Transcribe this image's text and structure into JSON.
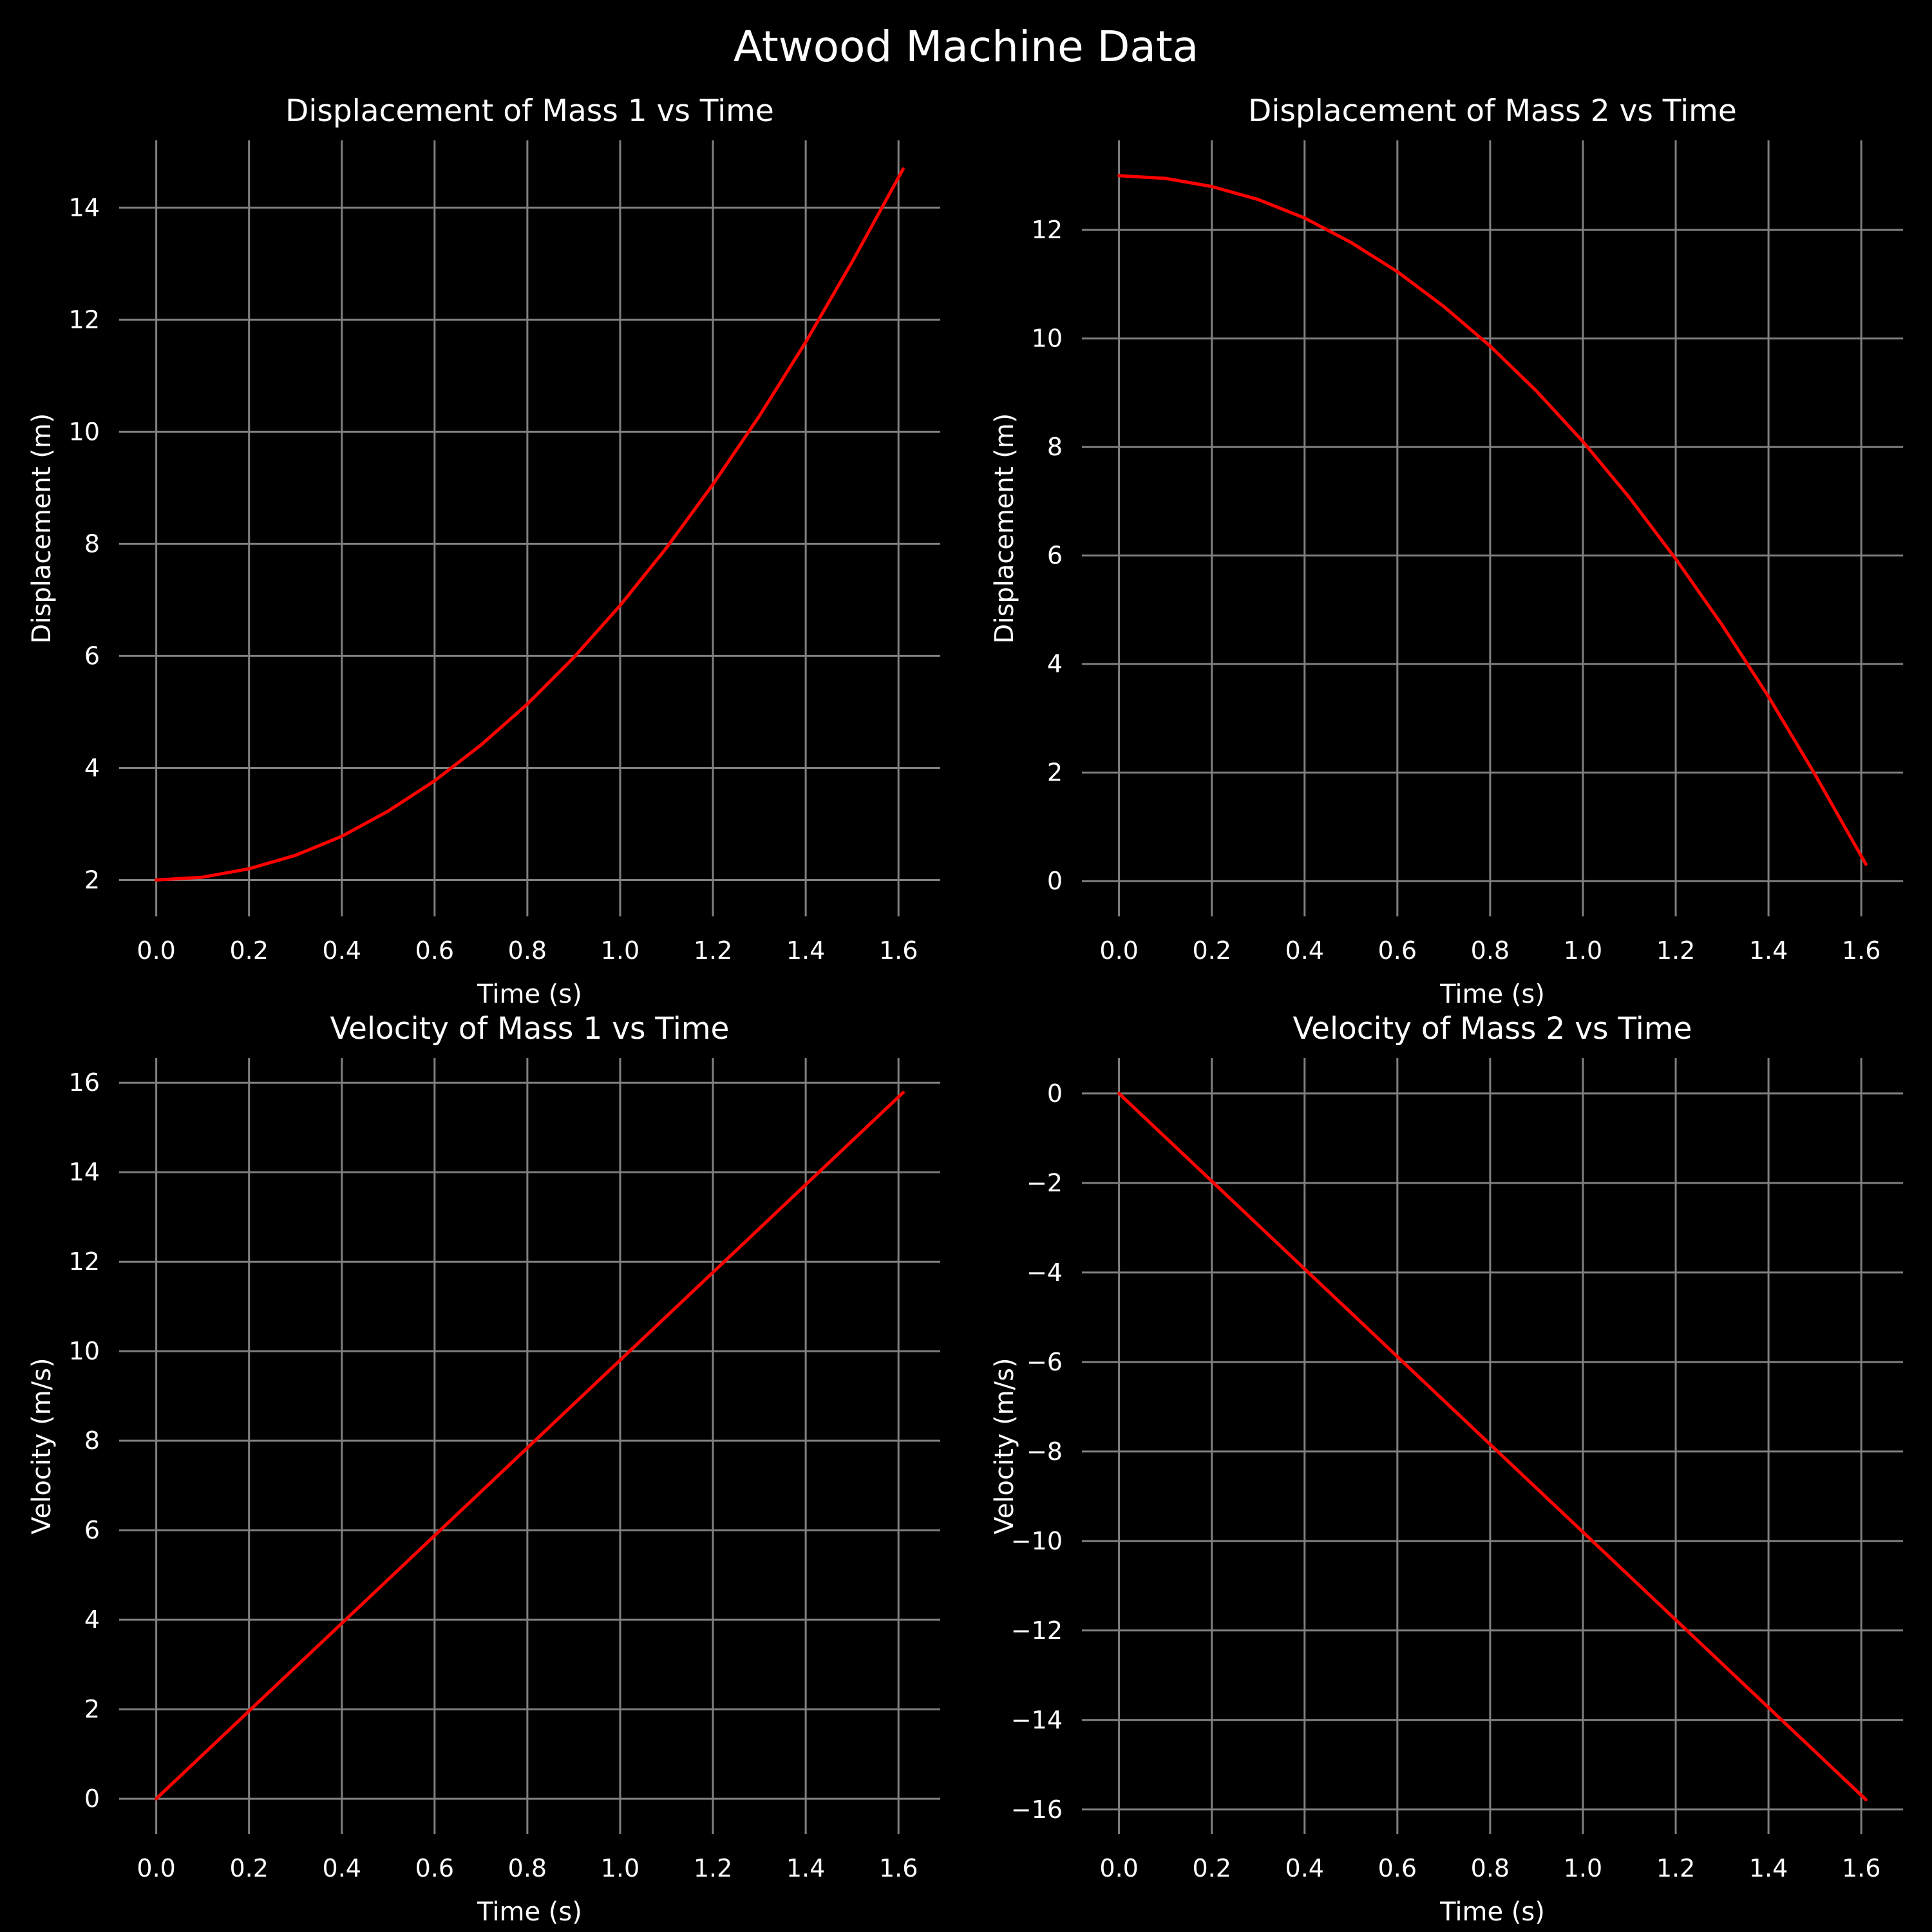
{
  "figure": {
    "suptitle": "Atwood Machine Data",
    "background": "#000000",
    "text_color": "#ffffff",
    "grid_color": "#808080",
    "line_color": "#ff0000"
  },
  "chart_data": [
    {
      "type": "line",
      "title": "Displacement of Mass 1 vs Time",
      "xlabel": "Time (s)",
      "ylabel": "Displacement (m)",
      "xlim": [
        -0.08,
        1.69
      ],
      "ylim": [
        1.35,
        15.2
      ],
      "xticks": [
        0.0,
        0.2,
        0.4,
        0.6,
        0.8,
        1.0,
        1.2,
        1.4,
        1.6
      ],
      "xtick_labels": [
        "0.0",
        "0.2",
        "0.4",
        "0.6",
        "0.8",
        "1.0",
        "1.2",
        "1.4",
        "1.6"
      ],
      "yticks": [
        2,
        4,
        6,
        8,
        10,
        12,
        14
      ],
      "ytick_labels": [
        "2",
        "4",
        "6",
        "8",
        "10",
        "12",
        "14"
      ],
      "grid": true,
      "series": [
        {
          "color": "#ff0000",
          "x": [
            0.0,
            0.1,
            0.2,
            0.3,
            0.4,
            0.5,
            0.6,
            0.7,
            0.8,
            0.9,
            1.0,
            1.1,
            1.2,
            1.3,
            1.4,
            1.5,
            1.61
          ],
          "y": [
            2.0,
            2.05,
            2.2,
            2.44,
            2.78,
            3.23,
            3.77,
            4.41,
            5.14,
            5.97,
            6.9,
            7.93,
            9.06,
            10.28,
            11.6,
            13.03,
            14.69
          ]
        }
      ]
    },
    {
      "type": "line",
      "title": "Displacement of Mass 2 vs Time",
      "xlabel": "Time (s)",
      "ylabel": "Displacement (m)",
      "xlim": [
        -0.08,
        1.69
      ],
      "ylim": [
        -0.65,
        13.65
      ],
      "xticks": [
        0.0,
        0.2,
        0.4,
        0.6,
        0.8,
        1.0,
        1.2,
        1.4,
        1.6
      ],
      "xtick_labels": [
        "0.0",
        "0.2",
        "0.4",
        "0.6",
        "0.8",
        "1.0",
        "1.2",
        "1.4",
        "1.6"
      ],
      "yticks": [
        0,
        2,
        4,
        6,
        8,
        10,
        12
      ],
      "ytick_labels": [
        "0",
        "2",
        "4",
        "6",
        "8",
        "10",
        "12"
      ],
      "grid": true,
      "series": [
        {
          "color": "#ff0000",
          "x": [
            0.0,
            0.1,
            0.2,
            0.3,
            0.4,
            0.5,
            0.6,
            0.7,
            0.8,
            0.9,
            1.0,
            1.1,
            1.2,
            1.3,
            1.4,
            1.5,
            1.61
          ],
          "y": [
            13.0,
            12.95,
            12.8,
            12.56,
            12.22,
            11.77,
            11.23,
            10.59,
            9.86,
            9.03,
            8.1,
            7.07,
            5.94,
            4.72,
            3.4,
            1.97,
            0.31
          ]
        }
      ]
    },
    {
      "type": "line",
      "title": "Velocity of Mass 1 vs Time",
      "xlabel": "Time (s)",
      "ylabel": "Velocity (m/s)",
      "xlim": [
        -0.08,
        1.69
      ],
      "ylim": [
        -0.79,
        16.55
      ],
      "xticks": [
        0.0,
        0.2,
        0.4,
        0.6,
        0.8,
        1.0,
        1.2,
        1.4,
        1.6
      ],
      "xtick_labels": [
        "0.0",
        "0.2",
        "0.4",
        "0.6",
        "0.8",
        "1.0",
        "1.2",
        "1.4",
        "1.6"
      ],
      "yticks": [
        0,
        2,
        4,
        6,
        8,
        10,
        12,
        14,
        16
      ],
      "ytick_labels": [
        "0",
        "2",
        "4",
        "6",
        "8",
        "10",
        "12",
        "14",
        "16"
      ],
      "grid": true,
      "series": [
        {
          "color": "#ff0000",
          "x": [
            0.0,
            1.61
          ],
          "y": [
            0.0,
            15.78
          ]
        }
      ]
    },
    {
      "type": "line",
      "title": "Velocity of Mass 2 vs Time",
      "xlabel": "Time (s)",
      "ylabel": "Velocity (m/s)",
      "xlim": [
        -0.08,
        1.69
      ],
      "ylim": [
        -16.55,
        0.79
      ],
      "xticks": [
        0.0,
        0.2,
        0.4,
        0.6,
        0.8,
        1.0,
        1.2,
        1.4,
        1.6
      ],
      "xtick_labels": [
        "0.0",
        "0.2",
        "0.4",
        "0.6",
        "0.8",
        "1.0",
        "1.2",
        "1.4",
        "1.6"
      ],
      "yticks": [
        0,
        -2,
        -4,
        -6,
        -8,
        -10,
        -12,
        -14,
        -16
      ],
      "ytick_labels": [
        "0",
        "−2",
        "−4",
        "−6",
        "−8",
        "−10",
        "−12",
        "−14",
        "−16"
      ],
      "grid": true,
      "series": [
        {
          "color": "#ff0000",
          "x": [
            0.0,
            1.61
          ],
          "y": [
            0.0,
            -15.78
          ]
        }
      ]
    }
  ]
}
